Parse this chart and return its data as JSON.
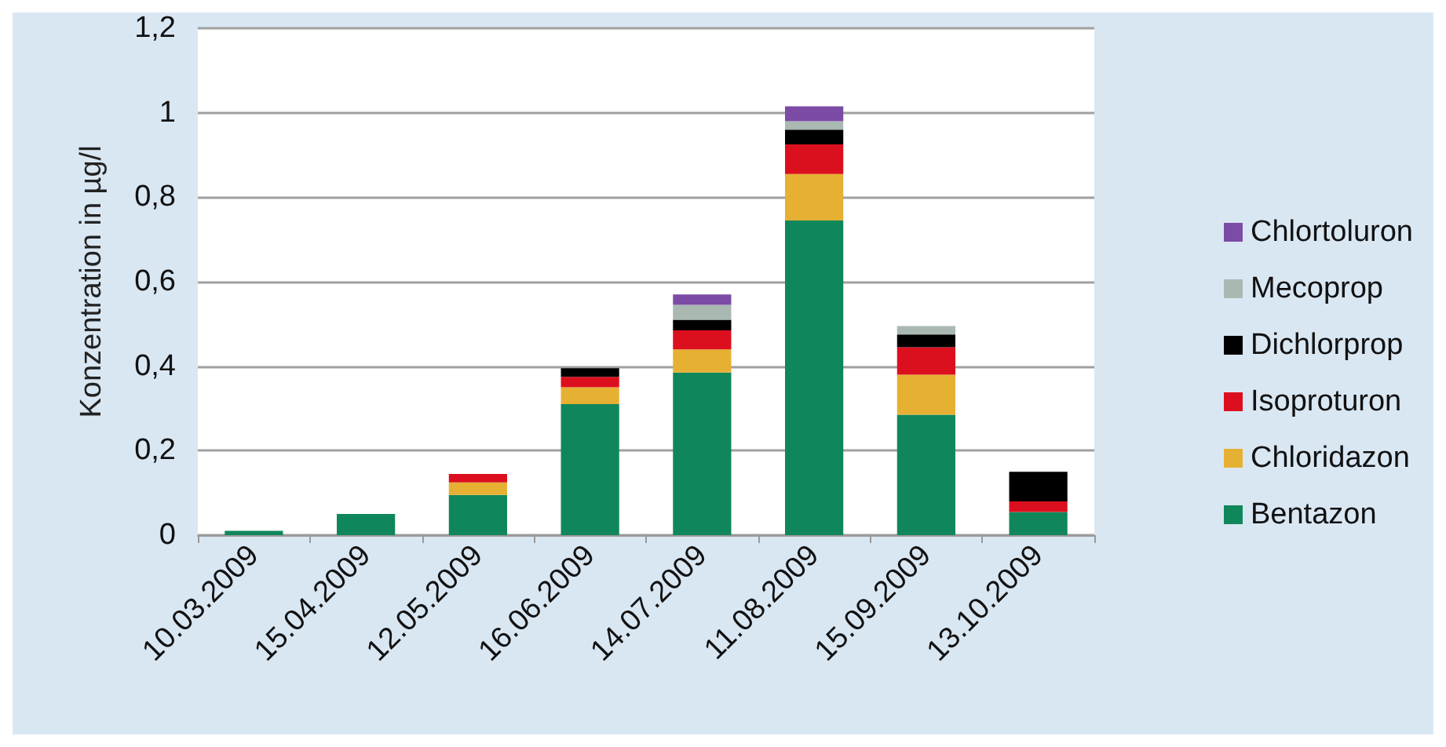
{
  "chart_data": {
    "type": "bar",
    "stacked": true,
    "ylabel": "Konzentration in µg/l",
    "categories": [
      "10.03.2009",
      "15.04.2009",
      "12.05.2009",
      "16.06.2009",
      "14.07.2009",
      "11.08.2009",
      "15.09.2009",
      "13.10.2009"
    ],
    "series": [
      {
        "name": "Bentazon",
        "color": "#10875a",
        "values": [
          0.01,
          0.05,
          0.095,
          0.31,
          0.385,
          0.745,
          0.285,
          0.055
        ]
      },
      {
        "name": "Chloridazon",
        "color": "#e6b033",
        "values": [
          0,
          0,
          0.03,
          0.04,
          0.055,
          0.11,
          0.095,
          0
        ]
      },
      {
        "name": "Isoproturon",
        "color": "#dc0f1e",
        "values": [
          0,
          0,
          0.02,
          0.025,
          0.045,
          0.07,
          0.065,
          0.025
        ]
      },
      {
        "name": "Dichlorprop",
        "color": "#000000",
        "values": [
          0,
          0,
          0,
          0.02,
          0.025,
          0.035,
          0.03,
          0.07
        ]
      },
      {
        "name": "Mecoprop",
        "color": "#a9b9b2",
        "values": [
          0,
          0,
          0,
          0,
          0.035,
          0.02,
          0.02,
          0
        ]
      },
      {
        "name": "Chlortoluron",
        "color": "#7b4ba6",
        "values": [
          0,
          0,
          0,
          0,
          0.025,
          0.035,
          0,
          0
        ]
      }
    ],
    "ylim": [
      0,
      1.2
    ],
    "yticks": [
      0,
      {
        "value": 0.2,
        "label": "0,2"
      },
      {
        "value": 0.4,
        "label": "0,4"
      },
      {
        "value": 0.6,
        "label": "0,6"
      },
      {
        "value": 0.8,
        "label": "0,8"
      },
      1,
      {
        "value": 1.2,
        "label": "1,2"
      }
    ],
    "grid": "y",
    "legend": "right"
  }
}
